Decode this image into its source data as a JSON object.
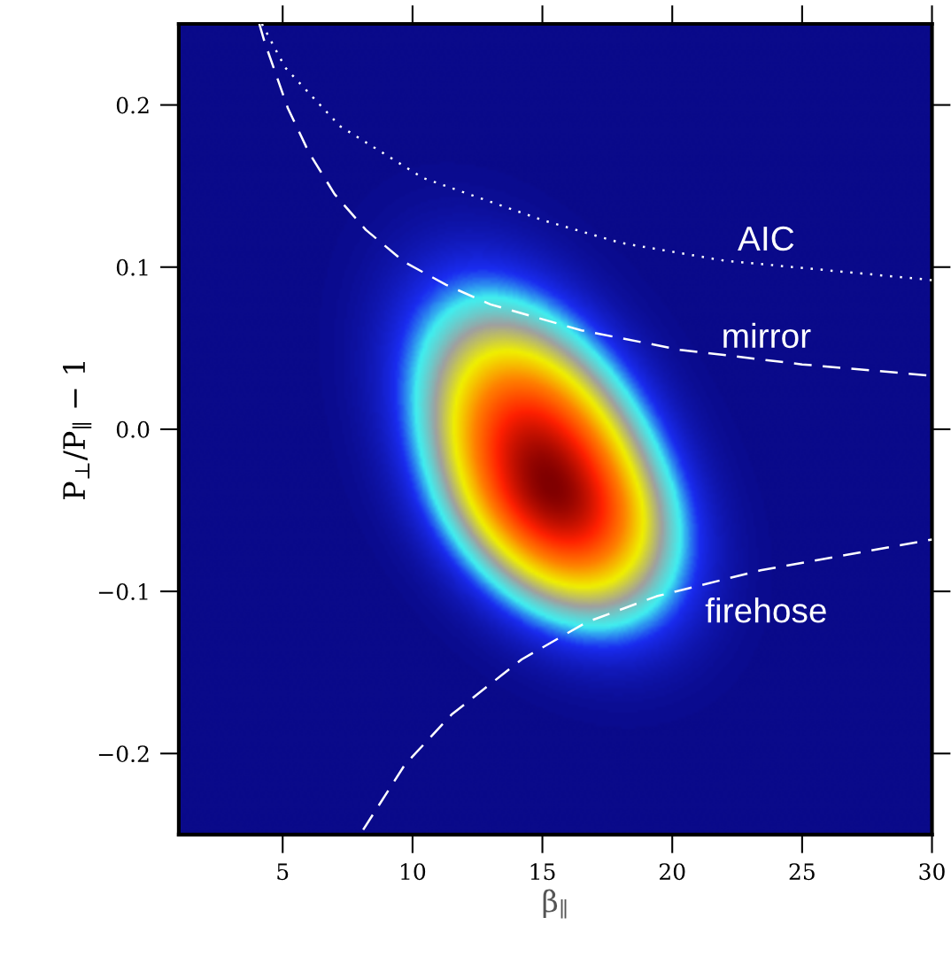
{
  "chart_data": {
    "type": "line",
    "grid": false,
    "legend": false,
    "xlabel": "β$_{∥}$",
    "ylabel": "P$_{⊥}$/P$_{∥}$ − 1",
    "xlim": [
      1,
      30
    ],
    "xticks": [
      5,
      10,
      15,
      20,
      25,
      30
    ],
    "ylim": [
      -0.25,
      0.25
    ],
    "yticks": [
      {
        "value": -0.2,
        "label": "−0.2"
      },
      {
        "value": -0.1,
        "label": "−0.1"
      },
      {
        "value": 0.0,
        "label": "0.0"
      },
      {
        "value": 0.1,
        "label": "0.1"
      },
      {
        "value": 0.2,
        "label": "0.2"
      }
    ],
    "series": [
      {
        "name": "AIC",
        "line_style": "dotted",
        "color": "#ffffff",
        "x": [
          4.2,
          5.1,
          7.2,
          10.4,
          15,
          18,
          22,
          30
        ],
        "values": [
          0.25,
          0.223,
          0.187,
          0.155,
          0.129,
          0.115,
          0.104,
          0.092
        ]
      },
      {
        "name": "mirror",
        "line_style": "dashed",
        "color": "#ffffff",
        "x": [
          4.1,
          4.3,
          5.2,
          6.0,
          7.0,
          8.2,
          9.7,
          11.3,
          13.0,
          16.5,
          20.3,
          25,
          30
        ],
        "values": [
          0.25,
          0.239,
          0.198,
          0.171,
          0.145,
          0.123,
          0.103,
          0.089,
          0.077,
          0.061,
          0.049,
          0.04,
          0.033
        ]
      },
      {
        "name": "firehose",
        "line_style": "dashed",
        "color": "#ffffff",
        "x": [
          8.1,
          9.7,
          11.5,
          14.2,
          16.7,
          19.4,
          23.4,
          30
        ],
        "values": [
          -0.247,
          -0.207,
          -0.176,
          -0.142,
          -0.119,
          -0.103,
          -0.087,
          -0.068
        ]
      }
    ]
  }
}
